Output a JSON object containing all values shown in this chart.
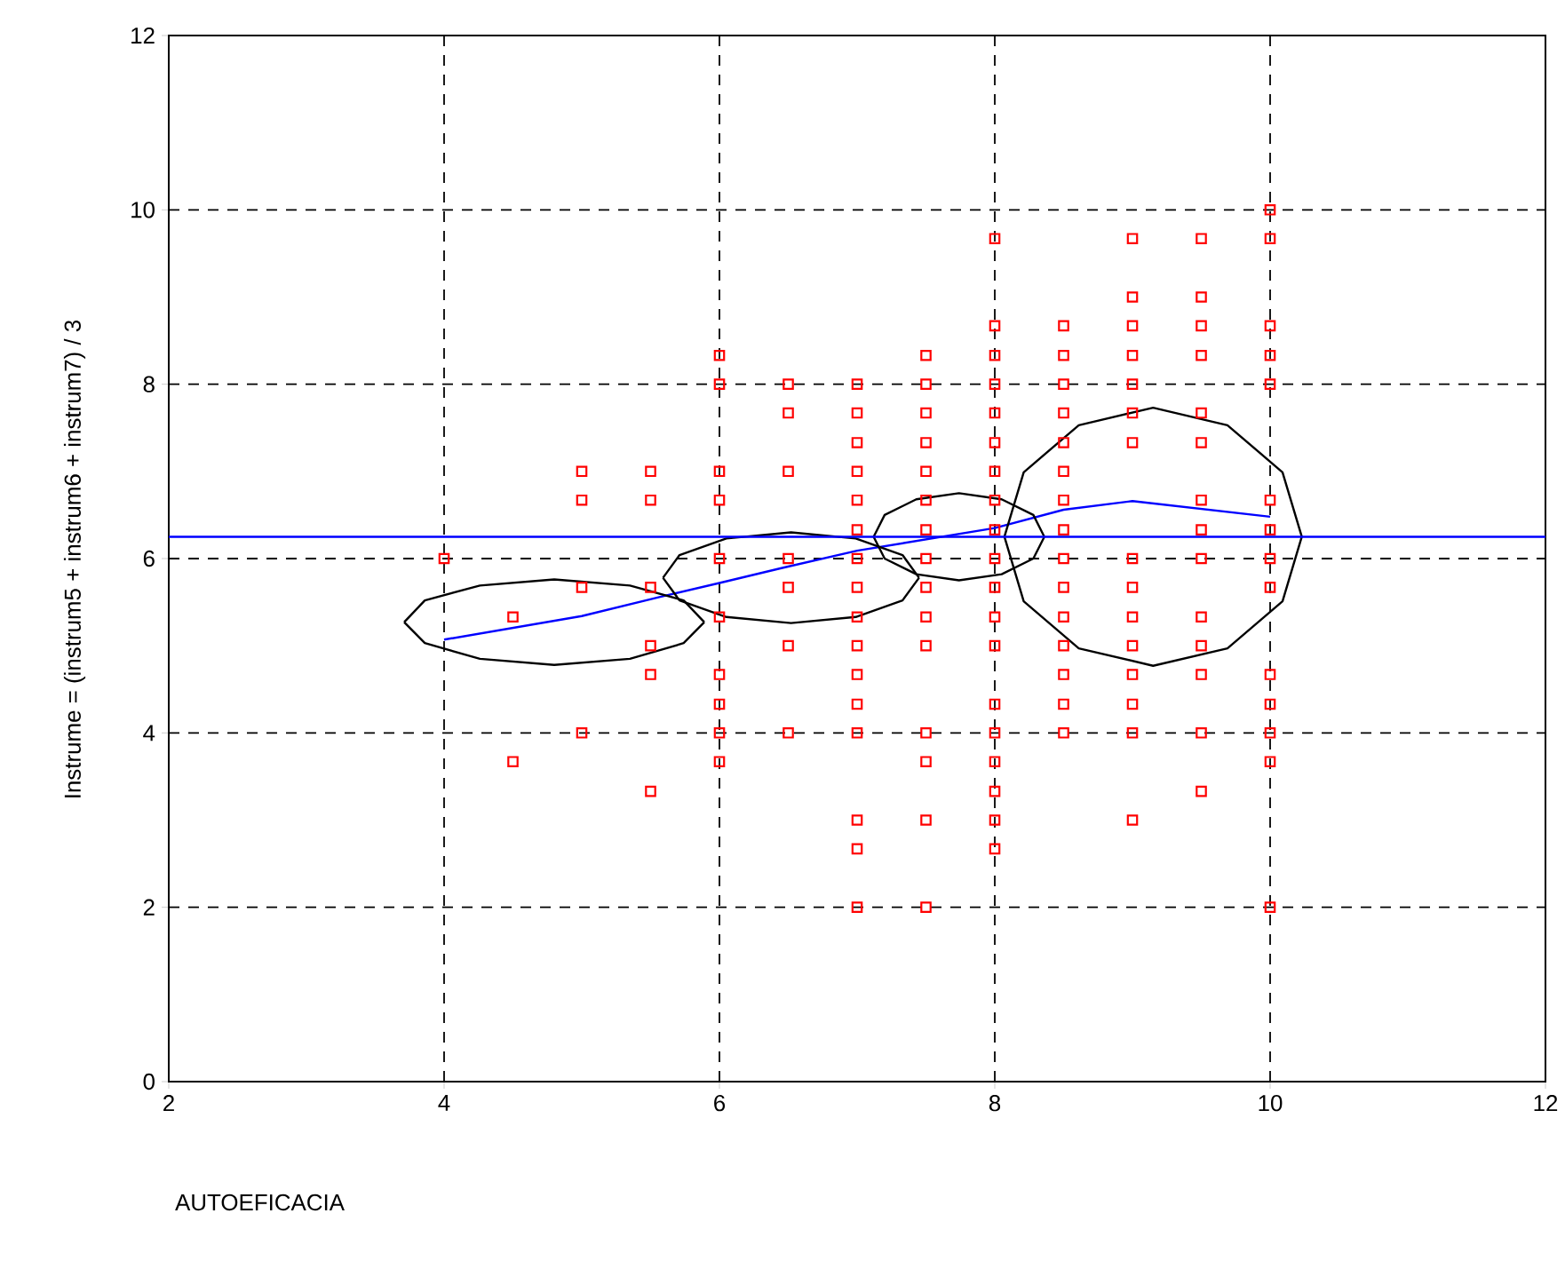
{
  "chart_data": {
    "type": "scatter",
    "xlabel": "AUTOEFICACIA",
    "ylabel": "Instrume = (instrum5 + instrum6 + instrum7) / 3",
    "xlim": [
      2,
      12
    ],
    "ylim": [
      0,
      12
    ],
    "xticks": [
      2,
      4,
      6,
      8,
      10,
      12
    ],
    "yticks": [
      0,
      2,
      4,
      6,
      8,
      10,
      12
    ],
    "grid": true,
    "ref_lines": [
      {
        "axis": "y",
        "value": 6.25,
        "color": "#0000ff"
      }
    ],
    "series": [
      {
        "color": "#ff0000",
        "marker": "square",
        "x": [
          4,
          4.5,
          4.5,
          5,
          5,
          5,
          5,
          5.5,
          5.5,
          5.5,
          5.5,
          5.5,
          5.5,
          6,
          6,
          6,
          6,
          6,
          6,
          6,
          6,
          6,
          6,
          6.5,
          6.5,
          6.5,
          6.5,
          6.5,
          6.5,
          6.5,
          7,
          7,
          7,
          7,
          7,
          7,
          7,
          7,
          7,
          7,
          7,
          7,
          7,
          7,
          7,
          7,
          7.5,
          7.5,
          7.5,
          7.5,
          7.5,
          7.5,
          7.5,
          7.5,
          7.5,
          7.5,
          7.5,
          7.5,
          7.5,
          7.5,
          7.5,
          8,
          8,
          8,
          8,
          8,
          8,
          8,
          8,
          8,
          8,
          8,
          8,
          8,
          8,
          8,
          8,
          8,
          8,
          8,
          8.5,
          8.5,
          8.5,
          8.5,
          8.5,
          8.5,
          8.5,
          8.5,
          8.5,
          8.5,
          8.5,
          8.5,
          8.5,
          8.5,
          8.5,
          9,
          9,
          9,
          9,
          9,
          9,
          9,
          9,
          9,
          9,
          9,
          9,
          9,
          9,
          9,
          9.5,
          9.5,
          9.5,
          9.5,
          9.5,
          9.5,
          9.5,
          9.5,
          9.5,
          9.5,
          9.5,
          9.5,
          9.5,
          9.5,
          10,
          10,
          10,
          10,
          10,
          10,
          10,
          10,
          10,
          10,
          10,
          10,
          10,
          10
        ],
        "values": [
          6,
          5.33,
          3.67,
          7,
          6.67,
          5.67,
          4,
          7,
          6.67,
          5.67,
          5,
          4.67,
          3.33,
          8.33,
          8,
          7,
          6.67,
          6,
          5.33,
          4.67,
          4.33,
          4,
          3.67,
          8,
          7.67,
          7,
          6,
          5.67,
          5,
          4,
          8,
          7.67,
          7.33,
          7,
          6.67,
          6.33,
          6,
          5.67,
          5.33,
          5,
          4.67,
          4.33,
          4,
          3,
          2.67,
          2,
          8.33,
          8,
          7.67,
          7.33,
          7,
          6.67,
          6.33,
          6,
          5.67,
          5.33,
          5,
          4,
          3.67,
          3,
          2,
          9.67,
          8.67,
          8.33,
          8,
          7.67,
          7.33,
          7,
          6.67,
          6.33,
          6,
          5.67,
          5.33,
          5,
          4.33,
          4,
          3.67,
          3.33,
          3,
          2.67,
          8.67,
          8.33,
          8,
          7.67,
          7.33,
          7,
          6.67,
          6.33,
          6,
          5.67,
          5.33,
          5,
          4.67,
          4.33,
          4,
          9.67,
          9,
          8.67,
          8.33,
          8,
          7.67,
          7.33,
          6,
          5.67,
          5.33,
          5,
          4.67,
          4.33,
          4,
          3,
          9.67,
          9,
          8.67,
          8.33,
          7.67,
          7.33,
          6.67,
          6.33,
          6,
          5.33,
          5,
          4.67,
          4,
          3.33,
          10,
          9.67,
          8.67,
          8.33,
          8,
          6.67,
          6.33,
          6,
          5.67,
          4.67,
          4.33,
          4,
          3.67,
          2
        ]
      },
      {
        "type": "line",
        "color": "#0000ff",
        "marker": "none",
        "x": [
          4,
          5,
          5.57,
          6,
          6.45,
          7,
          8,
          8.5,
          9,
          10
        ],
        "values": [
          5.07,
          5.34,
          5.56,
          5.72,
          5.89,
          6.09,
          6.35,
          6.56,
          6.66,
          6.48
        ]
      },
      {
        "type": "line",
        "color": "#000000",
        "marker": "none",
        "x": [
          3.71,
          3.86,
          4.26,
          4.8,
          5.35,
          5.74,
          5.89
        ],
        "values": [
          5.27,
          5.52,
          5.69,
          5.76,
          5.69,
          5.52,
          5.27
        ]
      },
      {
        "type": "line",
        "color": "#000000",
        "marker": "none",
        "x": [
          3.71,
          3.86,
          4.26,
          4.8,
          5.35,
          5.74,
          5.89
        ],
        "values": [
          5.27,
          5.03,
          4.85,
          4.78,
          4.85,
          5.03,
          5.27
        ]
      },
      {
        "type": "line",
        "color": "#000000",
        "marker": "none",
        "x": [
          5.59,
          5.71,
          6.05,
          6.52,
          6.99,
          7.33,
          7.45
        ],
        "values": [
          5.78,
          6.04,
          6.23,
          6.3,
          6.23,
          6.04,
          5.78
        ]
      },
      {
        "type": "line",
        "color": "#000000",
        "marker": "none",
        "x": [
          5.59,
          5.71,
          6.05,
          6.52,
          6.99,
          7.33,
          7.45
        ],
        "values": [
          5.78,
          5.52,
          5.33,
          5.26,
          5.33,
          5.52,
          5.78
        ]
      },
      {
        "type": "line",
        "color": "#000000",
        "marker": "none",
        "x": [
          7.12,
          7.2,
          7.43,
          7.74,
          8.05,
          8.28,
          8.36
        ],
        "values": [
          6.25,
          6.5,
          6.68,
          6.75,
          6.68,
          6.5,
          6.25
        ]
      },
      {
        "type": "line",
        "color": "#000000",
        "marker": "none",
        "x": [
          7.12,
          7.2,
          7.43,
          7.74,
          8.05,
          8.28,
          8.36
        ],
        "values": [
          6.25,
          6,
          5.82,
          5.75,
          5.82,
          6,
          6.25
        ]
      },
      {
        "type": "line",
        "color": "#000000",
        "marker": "none",
        "x": [
          8.07,
          8.21,
          8.61,
          9.15,
          9.69,
          10.09,
          10.23
        ],
        "values": [
          6.25,
          6.99,
          7.53,
          7.73,
          7.53,
          6.99,
          6.25
        ]
      },
      {
        "type": "line",
        "color": "#000000",
        "marker": "none",
        "x": [
          8.07,
          8.21,
          8.61,
          9.15,
          9.69,
          10.09,
          10.23
        ],
        "values": [
          6.25,
          5.51,
          4.97,
          4.77,
          4.97,
          5.51,
          6.25
        ]
      }
    ]
  }
}
